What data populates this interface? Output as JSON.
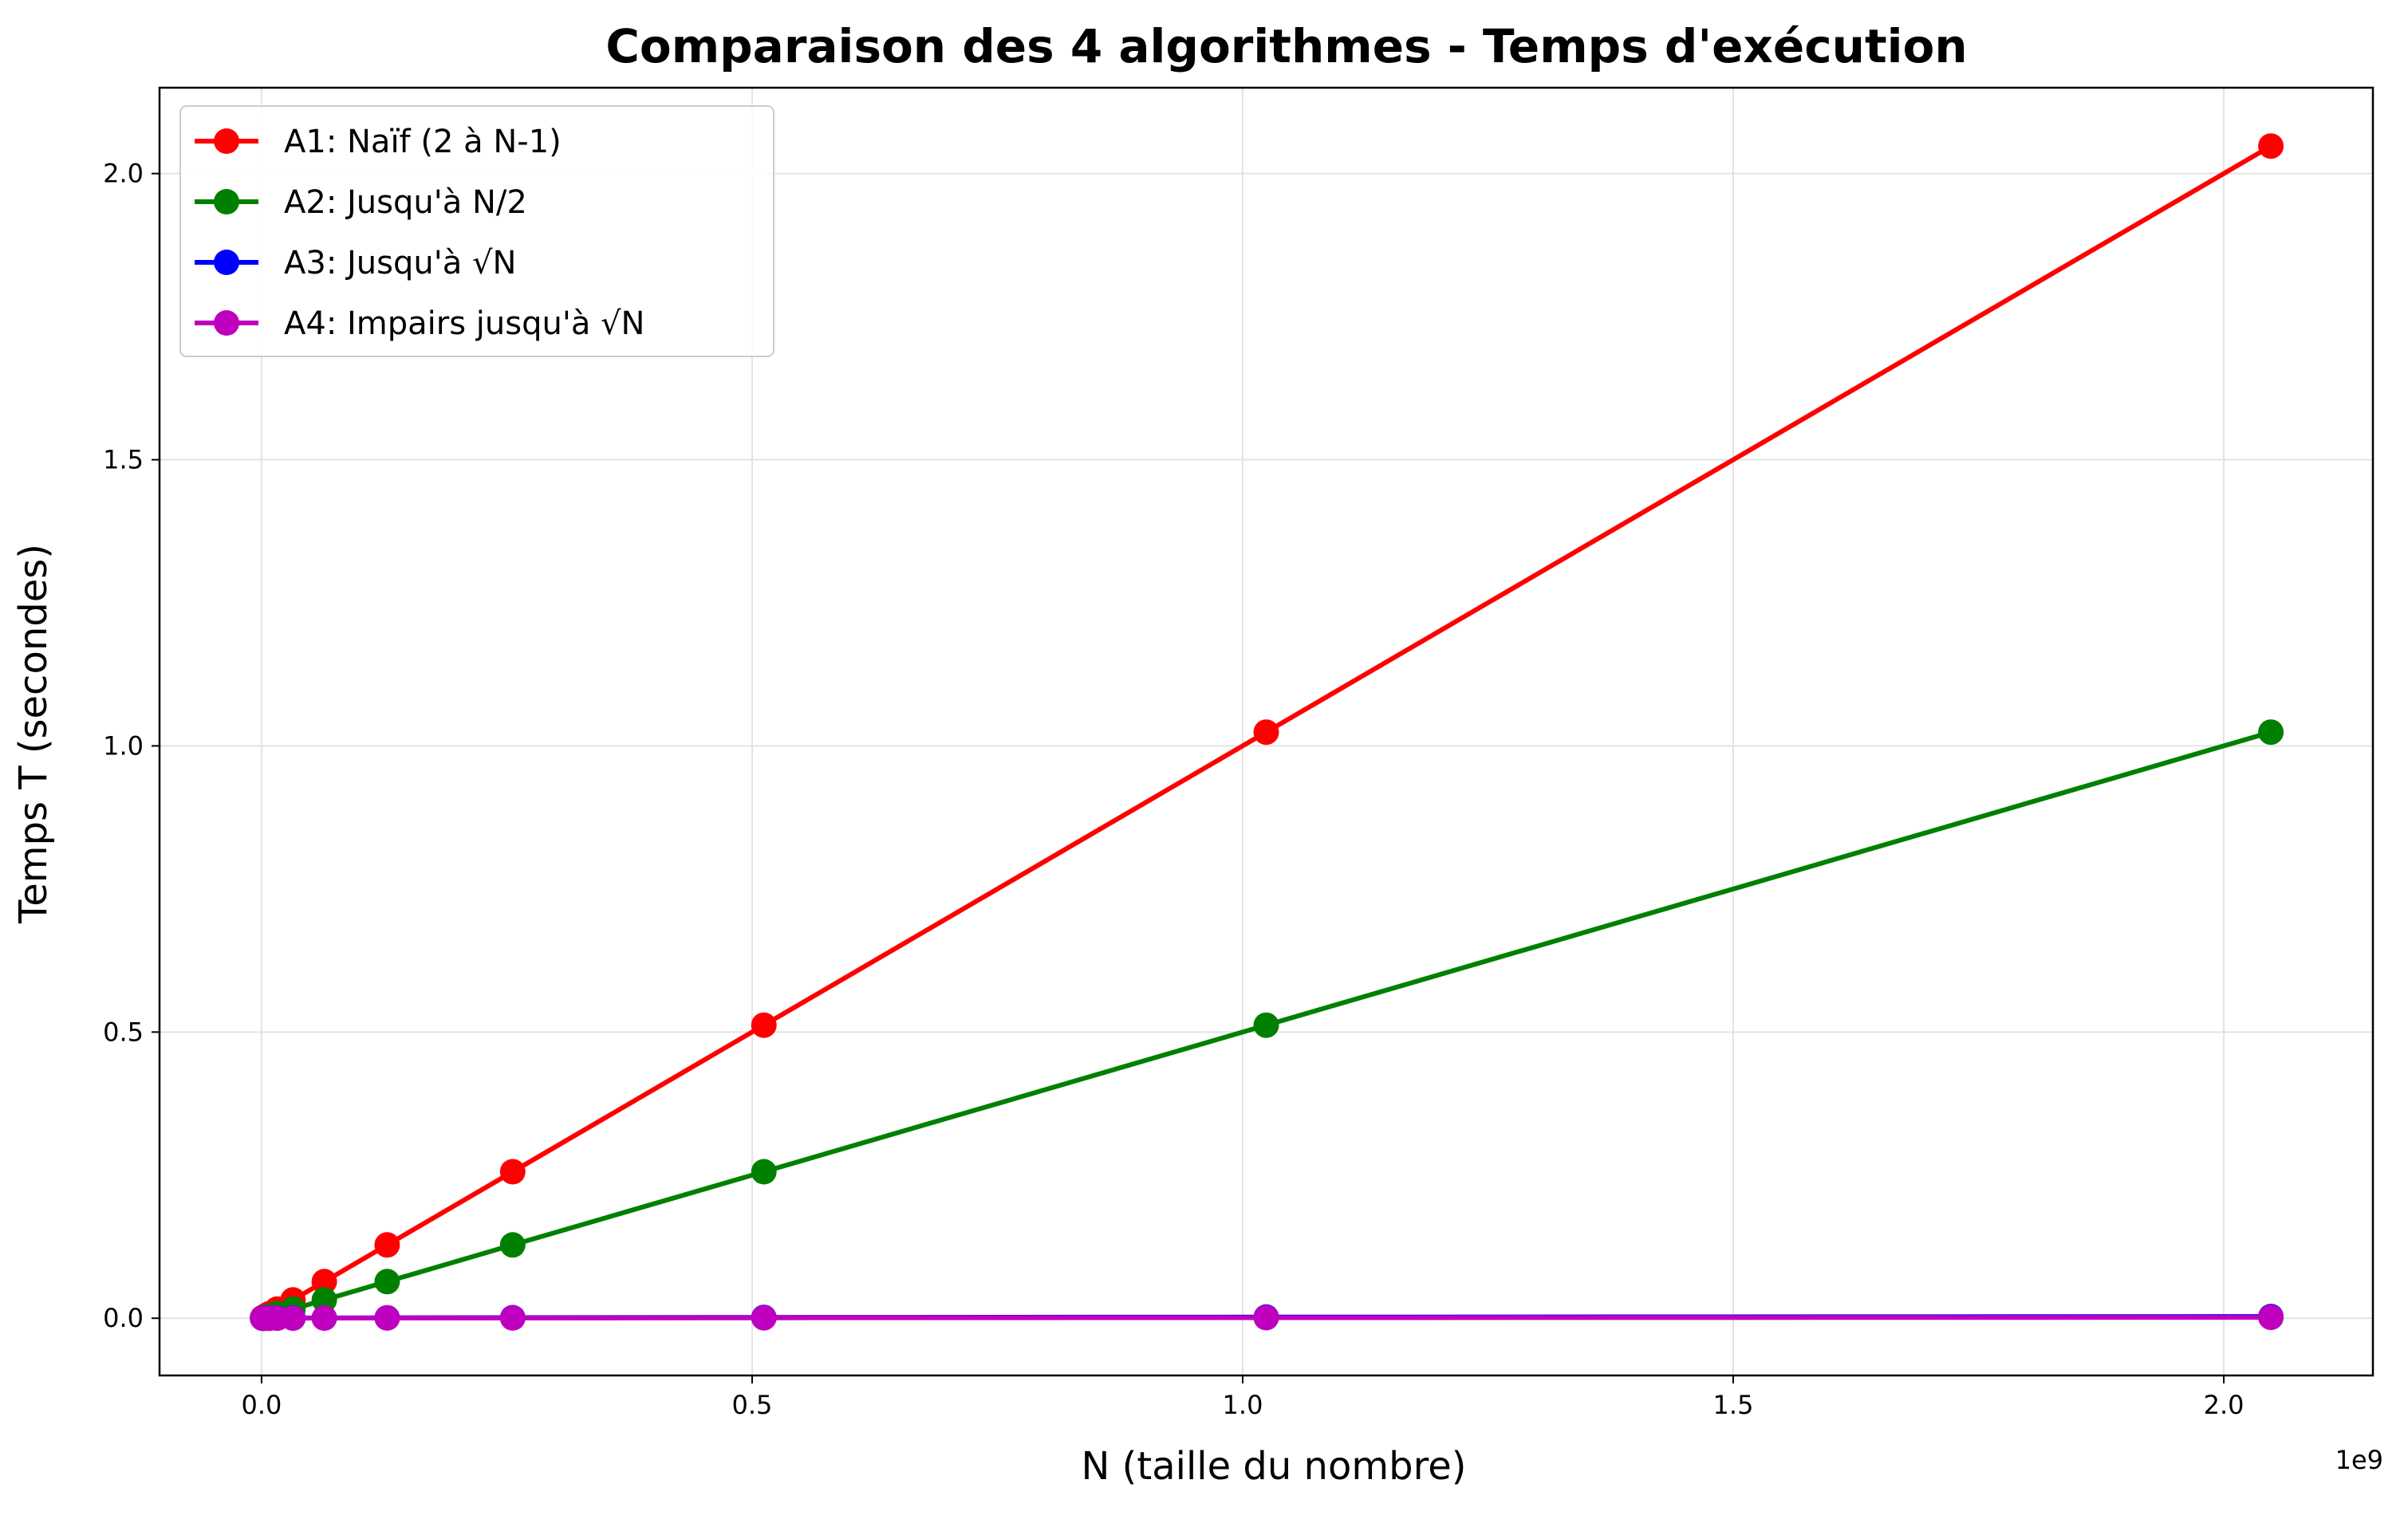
{
  "chart_data": {
    "type": "line",
    "title": "Comparaison des 4 algorithmes - Temps d'exécution",
    "xlabel": "N (taille du nombre)",
    "ylabel": "Temps T (secondes)",
    "x_offset_label": "1e9",
    "xlim": [
      -0.104,
      2.152
    ],
    "ylim": [
      -0.1,
      2.15
    ],
    "x_ticks": [
      0.0,
      0.5,
      1.0,
      1.5,
      2.0
    ],
    "x_tick_labels": [
      "0.0",
      "0.5",
      "1.0",
      "1.5",
      "2.0"
    ],
    "y_ticks": [
      0.0,
      0.5,
      1.0,
      1.5,
      2.0
    ],
    "y_tick_labels": [
      "0.0",
      "0.5",
      "1.0",
      "1.5",
      "2.0"
    ],
    "grid": true,
    "legend_position": "top-left",
    "x_unit_multiplier": 1000000000,
    "x": [
      0.001,
      0.002,
      0.004,
      0.008,
      0.016,
      0.032,
      0.064,
      0.128,
      0.256,
      0.512,
      1.024,
      2.048
    ],
    "series": [
      {
        "name": "A1: Naïf (2 à N-1)",
        "color": "#ff0000",
        "values": [
          0.001,
          0.002,
          0.004,
          0.008,
          0.016,
          0.032,
          0.064,
          0.128,
          0.256,
          0.512,
          1.024,
          2.048
        ]
      },
      {
        "name": "A2: Jusqu'à N/2",
        "color": "#008000",
        "values": [
          0.0005,
          0.001,
          0.002,
          0.004,
          0.008,
          0.016,
          0.032,
          0.064,
          0.128,
          0.256,
          0.512,
          1.024
        ]
      },
      {
        "name": "A3: Jusqu'à √N",
        "color": "#0000ff",
        "values": [
          0.0001,
          0.0001,
          0.0002,
          0.0002,
          0.0003,
          0.0004,
          0.0005,
          0.0007,
          0.001,
          0.0014,
          0.002,
          0.0029
        ]
      },
      {
        "name": "A4: Impairs jusqu'à √N",
        "color": "#bf00bf",
        "values": [
          0.0001,
          0.0001,
          0.0001,
          0.0001,
          0.0002,
          0.0002,
          0.0003,
          0.0004,
          0.0005,
          0.0007,
          0.001,
          0.0015
        ]
      }
    ]
  }
}
